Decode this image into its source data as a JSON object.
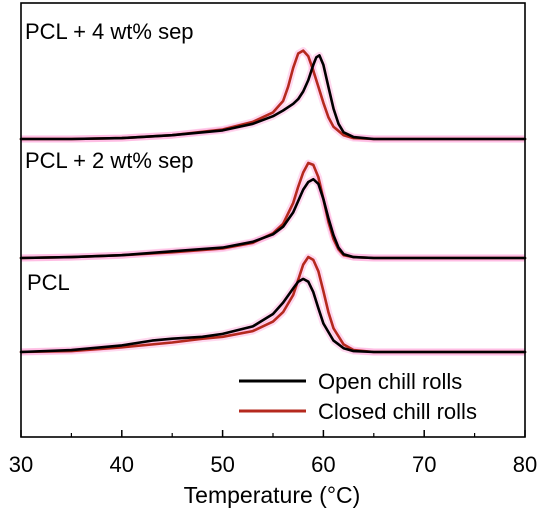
{
  "chart_data": {
    "type": "line",
    "xlabel": "Temperature (°C)",
    "ylabel": "",
    "xlim": [
      30,
      80
    ],
    "x_ticks": [
      "30",
      "40",
      "50",
      "60",
      "70",
      "80"
    ],
    "y_axis_ticks_shown": false,
    "grid": false,
    "legend_position": "bottom-right",
    "colors": {
      "open": "#000000",
      "closed": "#b5291e",
      "halo": "#ff8fd0"
    },
    "legend": [
      {
        "key": "open",
        "label": "Open chill rolls"
      },
      {
        "key": "closed",
        "label": "Closed chill rolls"
      }
    ],
    "panels": [
      {
        "label": "PCL + 4 wt% sep",
        "series": [
          {
            "key": "open",
            "x": [
              30,
              35,
              40,
              45,
              50,
              53,
              55,
              56,
              57,
              57.5,
              58,
              58.5,
              59,
              59.3,
              59.6,
              60,
              60.5,
              61,
              61.5,
              62,
              63,
              65,
              70,
              80
            ],
            "y": [
              0.0,
              0.0,
              0.01,
              0.04,
              0.09,
              0.16,
              0.24,
              0.3,
              0.37,
              0.42,
              0.5,
              0.62,
              0.78,
              0.86,
              0.88,
              0.78,
              0.55,
              0.32,
              0.16,
              0.07,
              0.02,
              0.0,
              0.0,
              0.0
            ]
          },
          {
            "key": "closed",
            "x": [
              30,
              35,
              40,
              45,
              50,
              53,
              55,
              56,
              56.5,
              57,
              57.5,
              58,
              58.5,
              59,
              59.5,
              60,
              60.5,
              61,
              62,
              63,
              65,
              70,
              80
            ],
            "y": [
              0.0,
              0.0,
              0.01,
              0.04,
              0.1,
              0.18,
              0.28,
              0.4,
              0.55,
              0.75,
              0.9,
              0.93,
              0.87,
              0.72,
              0.55,
              0.38,
              0.23,
              0.13,
              0.04,
              0.01,
              0.0,
              0.0,
              0.0
            ]
          }
        ]
      },
      {
        "label": "PCL + 2 wt% sep",
        "series": [
          {
            "key": "open",
            "x": [
              30,
              35,
              40,
              45,
              50,
              53,
              55,
              56,
              57,
              57.5,
              58,
              58.5,
              59,
              59.5,
              60,
              60.5,
              61,
              61.5,
              62,
              63,
              65,
              70,
              80
            ],
            "y": [
              0.0,
              0.01,
              0.03,
              0.07,
              0.11,
              0.17,
              0.25,
              0.33,
              0.48,
              0.6,
              0.72,
              0.8,
              0.83,
              0.78,
              0.62,
              0.42,
              0.24,
              0.11,
              0.04,
              0.01,
              0.0,
              0.0,
              0.0
            ]
          },
          {
            "key": "closed",
            "x": [
              30,
              35,
              40,
              45,
              50,
              53,
              55,
              56,
              57,
              57.5,
              58,
              58.5,
              59,
              59.5,
              60,
              60.5,
              61,
              61.5,
              62,
              63,
              65,
              70,
              80
            ],
            "y": [
              0.0,
              0.01,
              0.03,
              0.06,
              0.1,
              0.16,
              0.26,
              0.36,
              0.58,
              0.75,
              0.9,
              1.0,
              0.98,
              0.85,
              0.62,
              0.38,
              0.2,
              0.09,
              0.03,
              0.01,
              0.0,
              0.0,
              0.0
            ]
          }
        ]
      },
      {
        "label": "PCL",
        "series": [
          {
            "key": "open",
            "x": [
              30,
              35,
              40,
              43,
              45,
              48,
              50,
              53,
              55,
              56,
              57,
              57.5,
              58,
              58.5,
              59,
              59.5,
              60,
              61,
              62,
              63,
              65,
              70,
              80
            ],
            "y": [
              0.0,
              0.02,
              0.07,
              0.12,
              0.14,
              0.16,
              0.19,
              0.27,
              0.4,
              0.52,
              0.67,
              0.74,
              0.77,
              0.74,
              0.63,
              0.46,
              0.3,
              0.12,
              0.04,
              0.01,
              0.0,
              0.0,
              0.0
            ]
          },
          {
            "key": "closed",
            "x": [
              30,
              35,
              40,
              45,
              48,
              50,
              53,
              55,
              56,
              57,
              57.5,
              58,
              58.5,
              59,
              59.5,
              60,
              60.5,
              61,
              62,
              63,
              65,
              70,
              80
            ],
            "y": [
              0.0,
              0.01,
              0.05,
              0.1,
              0.14,
              0.16,
              0.22,
              0.32,
              0.42,
              0.6,
              0.76,
              0.92,
              1.0,
              0.97,
              0.85,
              0.64,
              0.42,
              0.25,
              0.08,
              0.02,
              0.0,
              0.0,
              0.0
            ]
          }
        ]
      }
    ]
  }
}
